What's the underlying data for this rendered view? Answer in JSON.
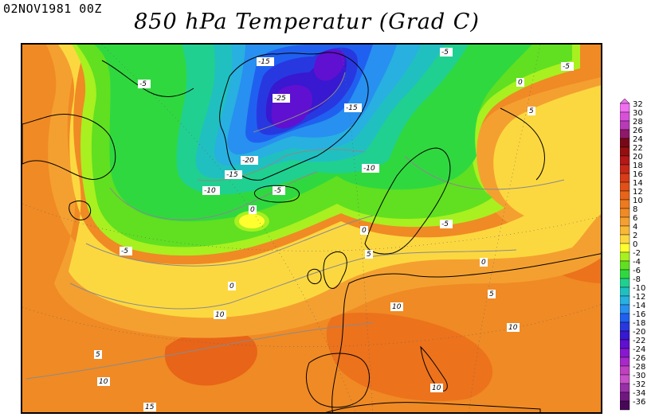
{
  "header": {
    "datetime": "02NOV1981 00Z",
    "title": "850 hPa Temperatur (Grad C)"
  },
  "legend": {
    "ticks": [
      "32",
      "30",
      "28",
      "26",
      "24",
      "22",
      "20",
      "18",
      "16",
      "14",
      "12",
      "10",
      "8",
      "6",
      "4",
      "2",
      "0",
      "-2",
      "-4",
      "-6",
      "-8",
      "-10",
      "-12",
      "-14",
      "-16",
      "-18",
      "-20",
      "-22",
      "-24",
      "-26",
      "-28",
      "-30",
      "-32",
      "-34",
      "-36"
    ],
    "colors": [
      "#f070f0",
      "#d850d8",
      "#b83ab8",
      "#901868",
      "#780818",
      "#961010",
      "#b41818",
      "#c82818",
      "#d83c18",
      "#e05018",
      "#e86418",
      "#ee7a1e",
      "#f08a24",
      "#f4a030",
      "#f8b838",
      "#fcd840",
      "#ffff30",
      "#a8f020",
      "#60e020",
      "#30d840",
      "#20d090",
      "#20c0c0",
      "#28b0e0",
      "#2890f0",
      "#2060f0",
      "#2838e0",
      "#3818d0",
      "#6010d0",
      "#8818d0",
      "#a828c8",
      "#c040c0",
      "#c850c8",
      "#9830a8",
      "#701880",
      "#480858"
    ]
  },
  "contour_labels": [
    {
      "id": "c1",
      "text": "-15"
    },
    {
      "id": "c2",
      "text": "-5"
    },
    {
      "id": "c3",
      "text": "-5"
    },
    {
      "id": "c4",
      "text": "-25"
    },
    {
      "id": "c5",
      "text": "-15"
    },
    {
      "id": "c6",
      "text": "0"
    },
    {
      "id": "c7",
      "text": "5"
    },
    {
      "id": "c8",
      "text": "-5"
    },
    {
      "id": "c9",
      "text": "-20"
    },
    {
      "id": "c10",
      "text": "-15"
    },
    {
      "id": "c11",
      "text": "-10"
    },
    {
      "id": "c12",
      "text": "-10"
    },
    {
      "id": "c13",
      "text": "-5"
    },
    {
      "id": "c14",
      "text": "0"
    },
    {
      "id": "c15",
      "text": "-5"
    },
    {
      "id": "c16",
      "text": "0"
    },
    {
      "id": "c17",
      "text": "-5"
    },
    {
      "id": "c18",
      "text": "5"
    },
    {
      "id": "c19",
      "text": "0"
    },
    {
      "id": "c20",
      "text": "0"
    },
    {
      "id": "c21",
      "text": "10"
    },
    {
      "id": "c22",
      "text": "5"
    },
    {
      "id": "c23",
      "text": "10"
    },
    {
      "id": "c24",
      "text": "10"
    },
    {
      "id": "c25",
      "text": "5"
    },
    {
      "id": "c26",
      "text": "10"
    },
    {
      "id": "c27",
      "text": "10"
    },
    {
      "id": "c28",
      "text": "15"
    }
  ]
}
